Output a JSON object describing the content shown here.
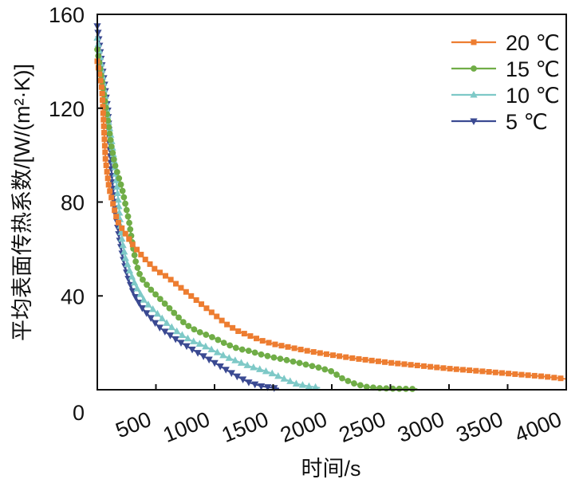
{
  "chart_data": {
    "type": "line",
    "title": "",
    "xlabel": "时间/s",
    "ylabel": "平均表面传热系数/[W/(m²·K)]",
    "xlim": [
      0,
      4000
    ],
    "ylim": [
      0,
      160
    ],
    "x_ticks": [
      500,
      1000,
      1500,
      2000,
      2500,
      3000,
      3500,
      4000
    ],
    "y_ticks": [
      0,
      40,
      80,
      120,
      160
    ],
    "x_tick_labels": [
      "500",
      "1000",
      "1500",
      "2000",
      "2500",
      "3000",
      "3500",
      "4000"
    ],
    "y_tick_labels": [
      "0",
      "40",
      "80",
      "120",
      "160"
    ],
    "grid": false,
    "legend_position": "top-right",
    "series": [
      {
        "name": "20 ℃",
        "color": "#ED7D31",
        "marker": "square",
        "points": [
          [
            0,
            140
          ],
          [
            40,
            128
          ],
          [
            70,
            98
          ],
          [
            100,
            86
          ],
          [
            130,
            80
          ],
          [
            170,
            72
          ],
          [
            220,
            68
          ],
          [
            300,
            62
          ],
          [
            400,
            56
          ],
          [
            500,
            51
          ],
          [
            600,
            48
          ],
          [
            700,
            44
          ],
          [
            800,
            40
          ],
          [
            900,
            36
          ],
          [
            1000,
            32
          ],
          [
            1100,
            28
          ],
          [
            1200,
            25
          ],
          [
            1300,
            23
          ],
          [
            1400,
            21
          ],
          [
            1500,
            19.5
          ],
          [
            1600,
            18.5
          ],
          [
            1800,
            16.5
          ],
          [
            2000,
            14.8
          ],
          [
            2200,
            13.3
          ],
          [
            2500,
            11.5
          ],
          [
            2800,
            10
          ],
          [
            3000,
            9
          ],
          [
            3300,
            7.8
          ],
          [
            3600,
            6.5
          ],
          [
            3800,
            5.7
          ],
          [
            4000,
            4.6
          ]
        ]
      },
      {
        "name": "15 ℃",
        "color": "#70AD47",
        "marker": "circle",
        "points": [
          [
            0,
            145
          ],
          [
            30,
            135
          ],
          [
            60,
            125
          ],
          [
            90,
            115
          ],
          [
            120,
            104
          ],
          [
            150,
            96
          ],
          [
            180,
            91
          ],
          [
            210,
            86
          ],
          [
            240,
            79
          ],
          [
            270,
            72
          ],
          [
            300,
            62
          ],
          [
            330,
            54
          ],
          [
            370,
            48
          ],
          [
            450,
            43
          ],
          [
            550,
            38
          ],
          [
            650,
            33
          ],
          [
            750,
            28
          ],
          [
            850,
            25
          ],
          [
            1000,
            22
          ],
          [
            1100,
            19.5
          ],
          [
            1200,
            17.5
          ],
          [
            1300,
            16.5
          ],
          [
            1400,
            15
          ],
          [
            1500,
            13.8
          ],
          [
            1600,
            12.8
          ],
          [
            1700,
            11.7
          ],
          [
            1800,
            10.5
          ],
          [
            1900,
            9.3
          ],
          [
            2000,
            7.8
          ],
          [
            2100,
            4.5
          ],
          [
            2200,
            2.5
          ],
          [
            2300,
            1.2
          ],
          [
            2400,
            0.7
          ],
          [
            2500,
            0.5
          ],
          [
            2600,
            0.4
          ],
          [
            2730,
            0.3
          ]
        ]
      },
      {
        "name": "10 ℃",
        "color": "#7EC9C7",
        "marker": "triangle-up",
        "points": [
          [
            0,
            150
          ],
          [
            30,
            140
          ],
          [
            60,
            128
          ],
          [
            90,
            116
          ],
          [
            120,
            107
          ],
          [
            150,
            95
          ],
          [
            180,
            80
          ],
          [
            210,
            64
          ],
          [
            240,
            56
          ],
          [
            280,
            50
          ],
          [
            330,
            44
          ],
          [
            400,
            38
          ],
          [
            500,
            33
          ],
          [
            600,
            28
          ],
          [
            700,
            24
          ],
          [
            800,
            21
          ],
          [
            900,
            19
          ],
          [
            1000,
            16.5
          ],
          [
            1100,
            14
          ],
          [
            1200,
            12
          ],
          [
            1300,
            10
          ],
          [
            1400,
            8.5
          ],
          [
            1500,
            6.8
          ],
          [
            1600,
            4.5
          ],
          [
            1700,
            2.5
          ],
          [
            1800,
            1.5
          ],
          [
            1900,
            0.8
          ]
        ]
      },
      {
        "name": "5 ℃",
        "color": "#3B4A92",
        "marker": "triangle-down",
        "points": [
          [
            0,
            155
          ],
          [
            30,
            142
          ],
          [
            60,
            131
          ],
          [
            90,
            119
          ],
          [
            110,
            100
          ],
          [
            130,
            88
          ],
          [
            160,
            74
          ],
          [
            190,
            64
          ],
          [
            220,
            56
          ],
          [
            260,
            48
          ],
          [
            310,
            41
          ],
          [
            380,
            35
          ],
          [
            450,
            31
          ],
          [
            520,
            27
          ],
          [
            600,
            24
          ],
          [
            700,
            20.5
          ],
          [
            800,
            17.5
          ],
          [
            900,
            14.5
          ],
          [
            1000,
            11.5
          ],
          [
            1100,
            8.5
          ],
          [
            1200,
            5.5
          ],
          [
            1300,
            3
          ],
          [
            1400,
            1.5
          ],
          [
            1500,
            0.8
          ],
          [
            1550,
            0.5
          ]
        ]
      }
    ]
  }
}
